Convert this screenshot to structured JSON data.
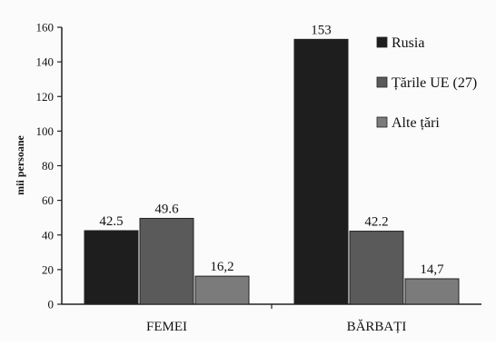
{
  "chart_data": {
    "type": "bar",
    "title": "",
    "xlabel": "",
    "ylabel": "mii persoane",
    "ylim": [
      0,
      160
    ],
    "yticks": [
      "0",
      "20",
      "40",
      "60",
      "80",
      "100",
      "120",
      "140",
      "160"
    ],
    "categories": [
      "FEMEI",
      "BĂRBAȚI"
    ],
    "series": [
      {
        "name": "Rusia",
        "color": "#1e1e1e",
        "values": [
          42.5,
          153
        ],
        "labels": [
          "42.5",
          "153"
        ]
      },
      {
        "name": "Țările UE (27)",
        "color": "#5a5a5a",
        "values": [
          49.6,
          42.2
        ],
        "labels": [
          "49.6",
          "42.2"
        ]
      },
      {
        "name": "Alte țări",
        "color": "#7b7b7b",
        "values": [
          16.2,
          14.7
        ],
        "labels": [
          "16,2",
          "14,7"
        ]
      }
    ],
    "legend_position": "top-right",
    "grid": false
  }
}
